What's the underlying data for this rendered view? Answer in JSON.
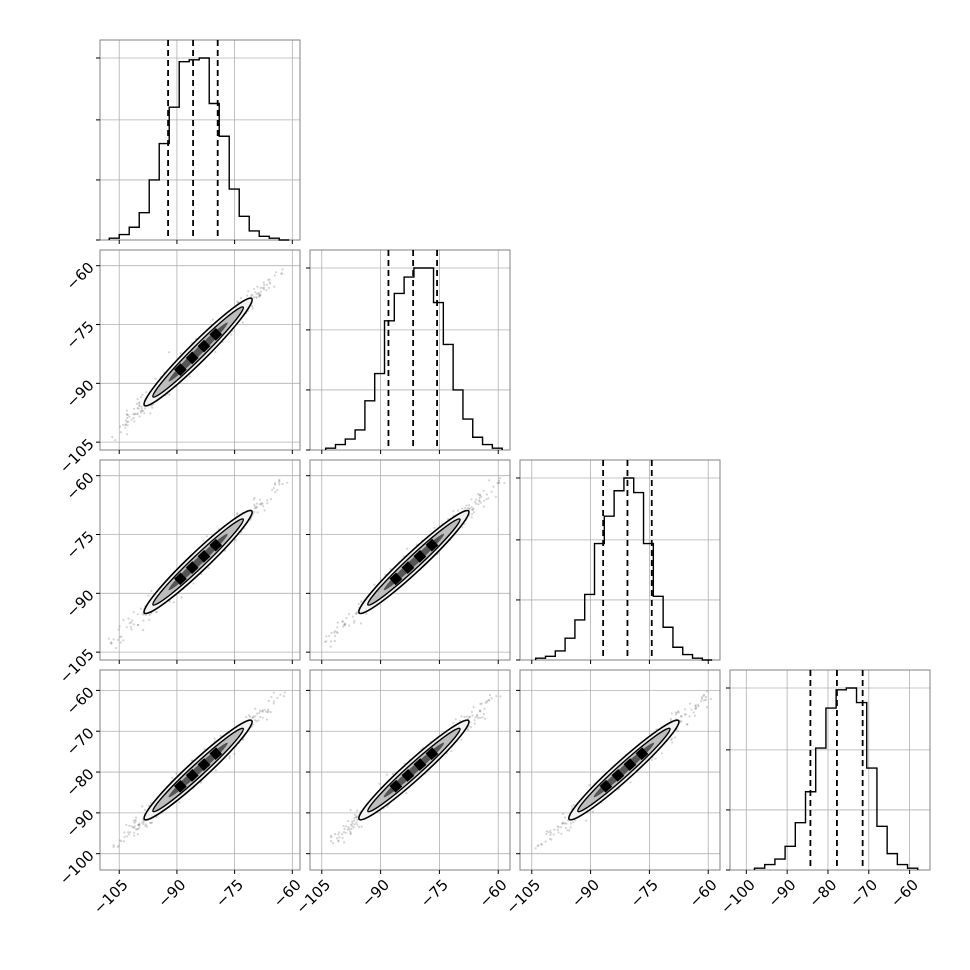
{
  "chart_data": {
    "type": "corner",
    "title": "",
    "parameters": 4,
    "grid": true,
    "colors": {
      "line": "#000000",
      "grid": "#b0b0b0",
      "points": "#808080",
      "frame": "#808080"
    },
    "histograms": [
      {
        "param": 0,
        "xlim": [
          -110,
          -58
        ],
        "bin_edges": [
          -107.6,
          -105.0,
          -102.4,
          -99.8,
          -97.2,
          -94.6,
          -92.0,
          -89.4,
          -86.8,
          -84.2,
          -81.6,
          -79.0,
          -76.4,
          -73.8,
          -71.2,
          -68.6,
          -66.0,
          -63.4,
          -60.8
        ],
        "counts": [
          0.01,
          0.03,
          0.07,
          0.15,
          0.33,
          0.53,
          0.73,
          0.98,
          0.99,
          1.0,
          0.75,
          0.57,
          0.28,
          0.13,
          0.05,
          0.02,
          0.01,
          0.0
        ],
        "quantiles": [
          -92.3,
          -85.8,
          -79.4
        ]
      },
      {
        "param": 1,
        "xlim": [
          -108,
          -57
        ],
        "bin_edges": [
          -104,
          -101.5,
          -99,
          -96.5,
          -94,
          -91.5,
          -89,
          -86.5,
          -84,
          -81.5,
          -79,
          -76.5,
          -74,
          -71.5,
          -69,
          -66.5,
          -64,
          -61.5,
          -59
        ],
        "counts": [
          0.01,
          0.03,
          0.06,
          0.11,
          0.27,
          0.42,
          0.71,
          0.86,
          0.95,
          1.0,
          1.0,
          0.81,
          0.58,
          0.33,
          0.17,
          0.07,
          0.03,
          0.01
        ],
        "quantiles": [
          -88.0,
          -81.7,
          -75.6
        ]
      },
      {
        "param": 2,
        "xlim": [
          -108,
          -57
        ],
        "bin_edges": [
          -104,
          -101.5,
          -99,
          -96.5,
          -94,
          -91.5,
          -89,
          -86.5,
          -84,
          -81.5,
          -79,
          -76.5,
          -74,
          -71.5,
          -69,
          -66.5,
          -64,
          -61.5,
          -59
        ],
        "counts": [
          0.01,
          0.02,
          0.05,
          0.12,
          0.22,
          0.36,
          0.64,
          0.79,
          0.93,
          1.0,
          0.92,
          0.64,
          0.35,
          0.18,
          0.07,
          0.03,
          0.01,
          0.0
        ],
        "quantiles": [
          -86.8,
          -80.6,
          -74.4
        ]
      },
      {
        "param": 3,
        "xlim": [
          -104,
          -55
        ],
        "bin_edges": [
          -98,
          -95.5,
          -93,
          -90.5,
          -88,
          -85.5,
          -83,
          -80.5,
          -78,
          -75.5,
          -73,
          -70.5,
          -68,
          -65.5,
          -63,
          -60.5,
          -58
        ],
        "counts": [
          0.01,
          0.03,
          0.06,
          0.13,
          0.26,
          0.43,
          0.67,
          0.89,
          0.99,
          1.0,
          0.92,
          0.56,
          0.24,
          0.09,
          0.03,
          0.01
        ],
        "quantiles": [
          -84.3,
          -77.8,
          -71.5
        ]
      }
    ],
    "panels2d": [
      {
        "row": 1,
        "col": 0,
        "xlim": [
          -110,
          -58
        ],
        "ylim": [
          -107,
          -56
        ],
        "x_range": [
          -107,
          -62
        ],
        "y_range": [
          -104,
          -60
        ],
        "width": 1.3
      },
      {
        "row": 2,
        "col": 0,
        "xlim": [
          -110,
          -58
        ],
        "ylim": [
          -107,
          -56
        ],
        "x_range": [
          -107,
          -62
        ],
        "y_range": [
          -103,
          -61
        ],
        "width": 1.4
      },
      {
        "row": 2,
        "col": 1,
        "xlim": [
          -108,
          -57
        ],
        "ylim": [
          -107,
          -56
        ],
        "x_range": [
          -104,
          -59
        ],
        "y_range": [
          -103,
          -61
        ],
        "width": 1.4
      },
      {
        "row": 3,
        "col": 0,
        "xlim": [
          -110,
          -58
        ],
        "ylim": [
          -104,
          -55
        ],
        "x_range": [
          -107,
          -62
        ],
        "y_range": [
          -99,
          -60
        ],
        "width": 1.2
      },
      {
        "row": 3,
        "col": 1,
        "xlim": [
          -108,
          -57
        ],
        "ylim": [
          -104,
          -55
        ],
        "x_range": [
          -104,
          -59
        ],
        "y_range": [
          -99,
          -60
        ],
        "width": 1.2
      },
      {
        "row": 3,
        "col": 2,
        "xlim": [
          -108,
          -57
        ],
        "ylim": [
          -104,
          -55
        ],
        "x_range": [
          -104,
          -59
        ],
        "y_range": [
          -99,
          -60
        ],
        "width": 1.2
      }
    ],
    "x_ticks": [
      {
        "col": 0,
        "values": [
          -105,
          -90,
          -75,
          -60
        ],
        "labels": [
          "−105",
          "−90",
          "−75",
          "−60"
        ]
      },
      {
        "col": 1,
        "values": [
          -105,
          -90,
          -75,
          -60
        ],
        "labels": [
          "−105",
          "−90",
          "−75",
          "−60"
        ]
      },
      {
        "col": 2,
        "values": [
          -105,
          -90,
          -75,
          -60
        ],
        "labels": [
          "−105",
          "−90",
          "−75",
          "−60"
        ]
      },
      {
        "col": 3,
        "values": [
          -100,
          -90,
          -80,
          -70,
          -60
        ],
        "labels": [
          "−100",
          "−90",
          "−80",
          "−70",
          "−60"
        ]
      }
    ],
    "y_ticks": [
      {
        "row": 1,
        "values": [
          -60,
          -75,
          -90,
          -105
        ],
        "labels": [
          "−60",
          "−75",
          "−90",
          "−105"
        ]
      },
      {
        "row": 2,
        "values": [
          -60,
          -75,
          -90,
          -105
        ],
        "labels": [
          "−60",
          "−75",
          "−90",
          "−105"
        ]
      },
      {
        "row": 3,
        "values": [
          -60,
          -70,
          -80,
          -90,
          -100
        ],
        "labels": [
          "−60",
          "−70",
          "−80",
          "−90",
          "−100"
        ]
      }
    ]
  }
}
